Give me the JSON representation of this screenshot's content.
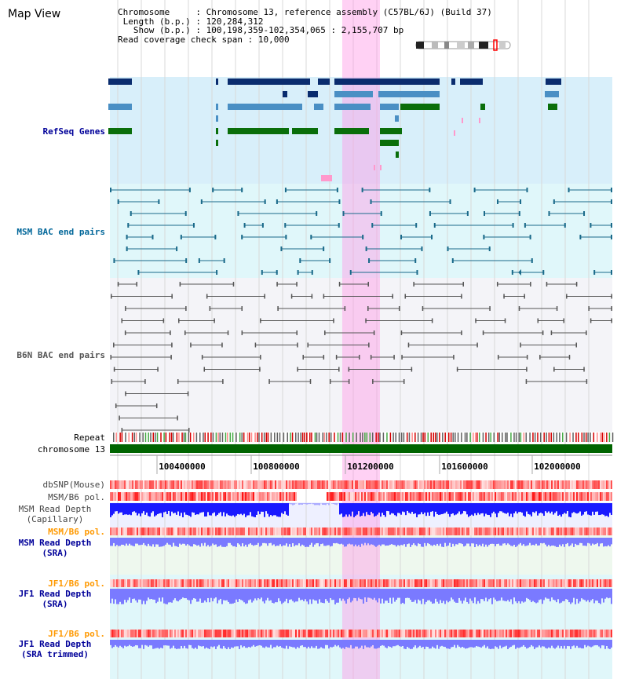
{
  "view_title": "Map View",
  "info": {
    "chromosome_label": "Chromosome",
    "chromosome_value": "Chromosome 13, reference assembly (C57BL/6J) (Build 37)",
    "length_label": "Length (b.p.)",
    "length_value": "120,284,312",
    "show_label": "Show (b.p.)",
    "show_value": "100,198,359-102,354,065 : 2,155,707 bp",
    "coverage_label": "Read coverage check span",
    "coverage_value": "10,000"
  },
  "tracks": {
    "refseq": "RefSeq Genes",
    "msm_bac": "MSM BAC end pairs",
    "b6n_bac": "B6N BAC end pairs",
    "repeat": "Repeat",
    "chromosome": "chromosome 13",
    "dbsnp": "dbSNP(Mouse)",
    "msm_pol_1": "MSM/B6 pol.",
    "msm_depth_cap_1": "MSM Read Depth",
    "msm_depth_cap_2": "(Capillary)",
    "msm_pol_2": "MSM/B6 pol.",
    "msm_depth_sra_1": "MSM Read Depth",
    "msm_depth_sra_2": "(SRA)",
    "jf1_pol_1": "JF1/B6 pol.",
    "jf1_depth_sra_1": "JF1 Read Depth",
    "jf1_depth_sra_2": "(SRA)",
    "jf1_pol_2": "JF1/B6 pol.",
    "jf1_depth_trim_1": "JF1 Read Depth",
    "jf1_depth_trim_2": "(SRA trimmed)"
  },
  "axis_ticks": [
    "100400000",
    "100800000",
    "101200000",
    "101600000",
    "102000000"
  ],
  "colors": {
    "refseq_dark": "#0a2c6e",
    "refseq_mid": "#4a8fc4",
    "refseq_green": "#0a6e0a",
    "msm_bac": "#1a6a8a",
    "b6n_bac": "#555555",
    "chromosome": "#006400",
    "highlight": "#ff99e6",
    "depth_capillary": "#1a1aff",
    "depth_sra": "#7a7aff",
    "polymorphism": "#ff3030",
    "label_blue": "#000099",
    "label_msm": "#006699",
    "label_orange": "#ff9900"
  }
}
